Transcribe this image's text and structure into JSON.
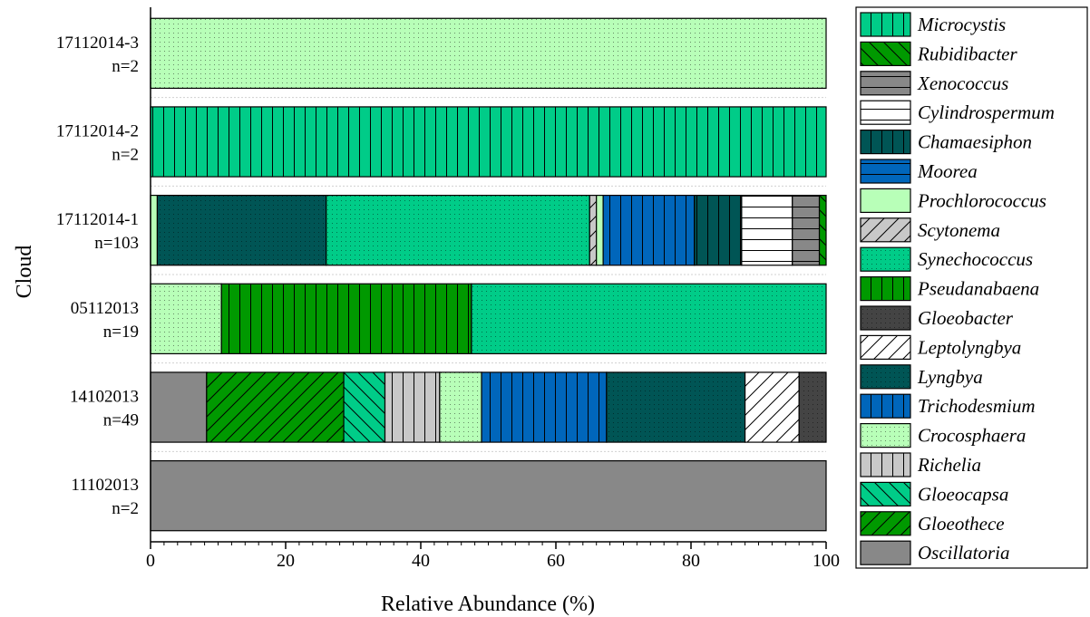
{
  "chart_data": {
    "type": "bar",
    "orientation": "horizontal",
    "stacked": true,
    "xlabel": "Relative Abundance (%)",
    "ylabel": "Cloud",
    "xlim": [
      0,
      100
    ],
    "xticks": [
      0,
      20,
      40,
      60,
      80,
      100
    ],
    "legend_position": "right",
    "categories": [
      [
        "17112014-3",
        "n=2"
      ],
      [
        "17112014-2",
        "n=2"
      ],
      [
        "17112014-1",
        "n=103"
      ],
      [
        "05112013",
        "n=19"
      ],
      [
        "14102013",
        "n=49"
      ],
      [
        "11102013",
        "n=2"
      ]
    ],
    "taxa": [
      {
        "name": "Microcystis",
        "color": "#00cc88",
        "pattern": "vlines"
      },
      {
        "name": "Rubidibacter",
        "color": "#009900",
        "pattern": "backdiag"
      },
      {
        "name": "Xenococcus",
        "color": "#888888",
        "pattern": "hlines"
      },
      {
        "name": "Cylindrospermum",
        "color": "#ffffff",
        "pattern": "hlines"
      },
      {
        "name": "Chamaesiphon",
        "color": "#005555",
        "pattern": "vlines"
      },
      {
        "name": "Moorea",
        "color": "#0066bb",
        "pattern": "hlines"
      },
      {
        "name": "Prochlorococcus",
        "color": "#b8ffb8",
        "pattern": "none"
      },
      {
        "name": "Scytonema",
        "color": "#c8c8c8",
        "pattern": "diag"
      },
      {
        "name": "Synechococcus",
        "color": "#00cc88",
        "pattern": "dots"
      },
      {
        "name": "Pseudanabaena",
        "color": "#009900",
        "pattern": "vlines"
      },
      {
        "name": "Gloeobacter",
        "color": "#444444",
        "pattern": "dots"
      },
      {
        "name": "Leptolyngbya",
        "color": "#ffffff",
        "pattern": "diag"
      },
      {
        "name": "Lyngbya",
        "color": "#005555",
        "pattern": "dots"
      },
      {
        "name": "Trichodesmium",
        "color": "#0066bb",
        "pattern": "vlines"
      },
      {
        "name": "Crocosphaera",
        "color": "#b8ffb8",
        "pattern": "dots"
      },
      {
        "name": "Richelia",
        "color": "#c8c8c8",
        "pattern": "vlines"
      },
      {
        "name": "Gloeocapsa",
        "color": "#00cc88",
        "pattern": "backdiag"
      },
      {
        "name": "Gloeothece",
        "color": "#009900",
        "pattern": "diag"
      },
      {
        "name": "Oscillatoria",
        "color": "#888888",
        "pattern": "none"
      }
    ],
    "bars": [
      {
        "segments": [
          {
            "taxon": "Crocosphaera",
            "value": 100
          }
        ]
      },
      {
        "segments": [
          {
            "taxon": "Microcystis",
            "value": 100
          }
        ]
      },
      {
        "segments": [
          {
            "taxon": "Prochlorococcus",
            "value": 1
          },
          {
            "taxon": "Lyngbya",
            "value": 25
          },
          {
            "taxon": "Synechococcus",
            "value": 39
          },
          {
            "taxon": "Scytonema",
            "value": 1
          },
          {
            "taxon": "Prochlorococcus",
            "value": 1
          },
          {
            "taxon": "Trichodesmium",
            "value": 13.5
          },
          {
            "taxon": "Chamaesiphon",
            "value": 7
          },
          {
            "taxon": "Cylindrospermum",
            "value": 7.5
          },
          {
            "taxon": "Xenococcus",
            "value": 4
          },
          {
            "taxon": "Rubidibacter",
            "value": 1
          }
        ]
      },
      {
        "segments": [
          {
            "taxon": "Crocosphaera",
            "value": 10.5
          },
          {
            "taxon": "Pseudanabaena",
            "value": 37
          },
          {
            "taxon": "Synechococcus",
            "value": 52.5
          }
        ]
      },
      {
        "segments": [
          {
            "taxon": "Oscillatoria",
            "value": 8.3
          },
          {
            "taxon": "Gloeothece",
            "value": 20.3
          },
          {
            "taxon": "Gloeocapsa",
            "value": 6.1
          },
          {
            "taxon": "Richelia",
            "value": 8.1
          },
          {
            "taxon": "Crocosphaera",
            "value": 6.2
          },
          {
            "taxon": "Trichodesmium",
            "value": 18.5
          },
          {
            "taxon": "Lyngbya",
            "value": 20.5
          },
          {
            "taxon": "Leptolyngbya",
            "value": 8
          },
          {
            "taxon": "Gloeobacter",
            "value": 4
          }
        ]
      },
      {
        "segments": [
          {
            "taxon": "Oscillatoria",
            "value": 100
          }
        ]
      }
    ]
  }
}
